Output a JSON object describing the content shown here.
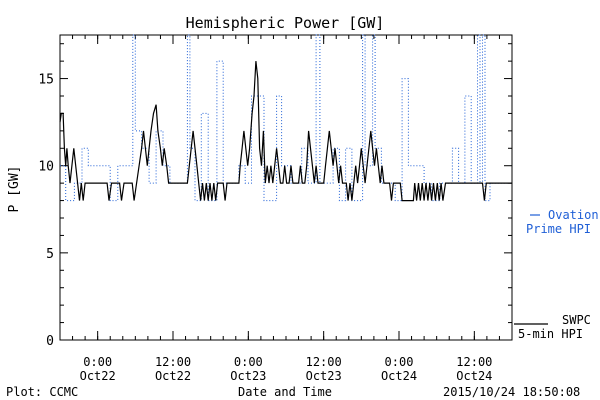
{
  "chart_data": {
    "type": "line",
    "title": "Hemispheric Power [GW]",
    "xlabel": "Date and Time",
    "ylabel": "P [GW]",
    "x_unit": "hours since 2015-10-21 18:00 UT",
    "xlim": [
      0,
      72
    ],
    "ylim": [
      0,
      17.5
    ],
    "y_ticks": [
      0,
      5,
      10,
      15
    ],
    "x_ticks": [
      {
        "x": 6,
        "time": "0:00",
        "day": "Oct22"
      },
      {
        "x": 18,
        "time": "12:00",
        "day": "Oct22"
      },
      {
        "x": 30,
        "time": "0:00",
        "day": "Oct23"
      },
      {
        "x": 42,
        "time": "12:00",
        "day": "Oct23"
      },
      {
        "x": 54,
        "time": "0:00",
        "day": "Oct24"
      },
      {
        "x": 66,
        "time": "12:00",
        "day": "Oct24"
      }
    ],
    "legend": [
      {
        "key": "ovation",
        "line1": "Ovation",
        "line2": "Prime HPI",
        "color": "#1f5fd6",
        "style": "dashed"
      },
      {
        "key": "swpc",
        "line1": "SWPC",
        "line2": "5-min HPI",
        "color": "#000000",
        "style": "solid"
      }
    ],
    "series": [
      {
        "name": "Ovation Prime HPI",
        "color": "#1f5fd6",
        "points": [
          [
            0,
            10
          ],
          [
            0.9,
            10
          ],
          [
            0.9,
            8
          ],
          [
            2.3,
            8
          ],
          [
            2.3,
            9
          ],
          [
            3.5,
            9
          ],
          [
            3.5,
            11
          ],
          [
            4.5,
            11
          ],
          [
            4.5,
            10
          ],
          [
            8,
            10
          ],
          [
            8,
            8
          ],
          [
            9.2,
            8
          ],
          [
            9.2,
            10
          ],
          [
            11.6,
            10
          ],
          [
            11.6,
            17.5
          ],
          [
            12,
            17.5
          ],
          [
            12,
            12
          ],
          [
            13,
            12
          ],
          [
            13,
            11
          ],
          [
            14.2,
            11
          ],
          [
            14.2,
            9
          ],
          [
            15.3,
            9
          ],
          [
            15.3,
            12
          ],
          [
            16.4,
            12
          ],
          [
            16.4,
            10
          ],
          [
            17.5,
            10
          ],
          [
            17.5,
            9
          ],
          [
            20.3,
            9
          ],
          [
            20.3,
            17.5
          ],
          [
            20.7,
            17.5
          ],
          [
            20.7,
            11
          ],
          [
            21.5,
            11
          ],
          [
            21.5,
            8
          ],
          [
            22.5,
            8
          ],
          [
            22.5,
            13
          ],
          [
            23.6,
            13
          ],
          [
            23.6,
            8
          ],
          [
            25,
            8
          ],
          [
            25,
            16
          ],
          [
            26,
            16
          ],
          [
            26,
            9
          ],
          [
            28.5,
            9
          ],
          [
            28.5,
            10
          ],
          [
            29.5,
            10
          ],
          [
            29.5,
            9
          ],
          [
            30.5,
            9
          ],
          [
            30.5,
            14
          ],
          [
            32.5,
            14
          ],
          [
            32.5,
            8
          ],
          [
            34.5,
            8
          ],
          [
            34.5,
            14
          ],
          [
            35.3,
            14
          ],
          [
            35.3,
            10
          ],
          [
            36.8,
            10
          ],
          [
            36.8,
            9
          ],
          [
            38.5,
            9
          ],
          [
            38.5,
            11
          ],
          [
            39.5,
            11
          ],
          [
            39.5,
            9
          ],
          [
            40.8,
            9
          ],
          [
            40.8,
            17.5
          ],
          [
            41.4,
            17.5
          ],
          [
            41.4,
            9
          ],
          [
            43.5,
            9
          ],
          [
            43.5,
            11
          ],
          [
            44.5,
            11
          ],
          [
            44.5,
            8
          ],
          [
            45.5,
            8
          ],
          [
            45.5,
            11
          ],
          [
            46.5,
            11
          ],
          [
            46.5,
            8
          ],
          [
            48.2,
            8
          ],
          [
            48.2,
            17.5
          ],
          [
            48.6,
            17.5
          ],
          [
            48.6,
            10
          ],
          [
            49.8,
            10
          ],
          [
            49.8,
            17.5
          ],
          [
            50.2,
            17.5
          ],
          [
            50.2,
            11
          ],
          [
            51.2,
            11
          ],
          [
            51.2,
            9
          ],
          [
            53.4,
            9
          ],
          [
            53.4,
            8
          ],
          [
            54.5,
            8
          ],
          [
            54.5,
            15
          ],
          [
            55.5,
            15
          ],
          [
            55.5,
            10
          ],
          [
            58,
            10
          ],
          [
            58,
            9
          ],
          [
            59.2,
            9
          ],
          [
            59.2,
            8
          ],
          [
            60.5,
            8
          ],
          [
            60.5,
            9
          ],
          [
            62.5,
            9
          ],
          [
            62.5,
            11
          ],
          [
            63.5,
            11
          ],
          [
            63.5,
            9
          ],
          [
            64.5,
            9
          ],
          [
            64.5,
            14
          ],
          [
            65.5,
            14
          ],
          [
            65.5,
            9
          ],
          [
            66.5,
            9
          ],
          [
            66.5,
            17.5
          ],
          [
            66.9,
            17.5
          ],
          [
            66.9,
            9
          ],
          [
            67.3,
            9
          ],
          [
            67.3,
            17.5
          ],
          [
            67.7,
            17.5
          ],
          [
            67.7,
            8
          ],
          [
            68.5,
            8
          ],
          [
            68.5,
            9
          ],
          [
            72,
            9
          ]
        ]
      },
      {
        "name": "SWPC 5-min HPI",
        "color": "#000000",
        "points": [
          [
            0,
            12.5
          ],
          [
            0.2,
            13
          ],
          [
            0.5,
            13
          ],
          [
            0.7,
            11
          ],
          [
            0.9,
            10
          ],
          [
            1.1,
            11
          ],
          [
            1.3,
            10
          ],
          [
            1.6,
            9
          ],
          [
            1.9,
            10
          ],
          [
            2.2,
            11
          ],
          [
            2.5,
            10
          ],
          [
            2.8,
            9
          ],
          [
            3.1,
            8
          ],
          [
            3.4,
            9
          ],
          [
            3.7,
            8
          ],
          [
            4,
            9
          ],
          [
            4.4,
            9
          ],
          [
            4.4,
            9
          ],
          [
            7.5,
            9
          ],
          [
            7.8,
            8
          ],
          [
            8.2,
            9
          ],
          [
            9.5,
            9
          ],
          [
            9.8,
            8
          ],
          [
            10.2,
            9
          ],
          [
            11.5,
            9
          ],
          [
            11.8,
            8
          ],
          [
            12.2,
            9
          ],
          [
            12.6,
            10
          ],
          [
            13,
            11
          ],
          [
            13.3,
            12
          ],
          [
            13.6,
            11
          ],
          [
            13.9,
            10
          ],
          [
            14.2,
            11
          ],
          [
            14.5,
            12
          ],
          [
            14.9,
            13
          ],
          [
            15.3,
            13.5
          ],
          [
            15.6,
            12
          ],
          [
            16,
            11
          ],
          [
            16.3,
            10
          ],
          [
            16.6,
            11
          ],
          [
            17,
            10
          ],
          [
            17.3,
            9
          ],
          [
            20.3,
            9
          ],
          [
            20.6,
            10
          ],
          [
            20.9,
            11
          ],
          [
            21.2,
            12
          ],
          [
            21.5,
            11
          ],
          [
            21.8,
            10
          ],
          [
            22.1,
            9
          ],
          [
            22.4,
            8
          ],
          [
            22.7,
            9
          ],
          [
            23,
            8
          ],
          [
            23.3,
            9
          ],
          [
            23.6,
            8
          ],
          [
            23.9,
            9
          ],
          [
            24.2,
            8
          ],
          [
            24.5,
            9
          ],
          [
            24.8,
            8
          ],
          [
            25.1,
            9
          ],
          [
            26,
            9
          ],
          [
            26.3,
            8
          ],
          [
            26.6,
            9
          ],
          [
            28.5,
            9
          ],
          [
            28.7,
            10
          ],
          [
            29,
            11
          ],
          [
            29.3,
            12
          ],
          [
            29.6,
            11
          ],
          [
            29.9,
            10
          ],
          [
            30.2,
            11
          ],
          [
            30.6,
            13
          ],
          [
            30.9,
            14
          ],
          [
            31.2,
            16
          ],
          [
            31.5,
            15
          ],
          [
            31.8,
            11
          ],
          [
            32.1,
            10
          ],
          [
            32.4,
            12
          ],
          [
            32.7,
            9
          ],
          [
            33,
            10
          ],
          [
            33.3,
            9
          ],
          [
            33.6,
            10
          ],
          [
            33.9,
            9
          ],
          [
            34.2,
            10
          ],
          [
            34.5,
            11
          ],
          [
            34.8,
            10
          ],
          [
            35.1,
            9
          ],
          [
            35.5,
            9
          ],
          [
            35.8,
            10
          ],
          [
            36.1,
            9
          ],
          [
            36.5,
            9
          ],
          [
            36.8,
            10
          ],
          [
            37.1,
            9
          ],
          [
            38,
            9
          ],
          [
            38.3,
            10
          ],
          [
            38.6,
            9
          ],
          [
            39,
            9
          ],
          [
            39.3,
            10
          ],
          [
            39.6,
            12
          ],
          [
            39.9,
            11
          ],
          [
            40.2,
            10
          ],
          [
            40.5,
            9
          ],
          [
            40.8,
            10
          ],
          [
            41.1,
            9
          ],
          [
            42,
            9
          ],
          [
            42.3,
            10
          ],
          [
            42.6,
            11
          ],
          [
            42.9,
            12
          ],
          [
            43.2,
            11
          ],
          [
            43.5,
            10
          ],
          [
            43.8,
            11
          ],
          [
            44.1,
            10
          ],
          [
            44.4,
            9
          ],
          [
            44.7,
            10
          ],
          [
            45,
            9
          ],
          [
            45.6,
            9
          ],
          [
            45.9,
            8
          ],
          [
            46.2,
            9
          ],
          [
            46.5,
            8
          ],
          [
            46.8,
            9
          ],
          [
            47.1,
            10
          ],
          [
            47.4,
            9
          ],
          [
            47.7,
            10
          ],
          [
            48,
            11
          ],
          [
            48.3,
            10
          ],
          [
            48.6,
            9
          ],
          [
            48.9,
            10
          ],
          [
            49.2,
            11
          ],
          [
            49.5,
            12
          ],
          [
            49.8,
            11
          ],
          [
            50.1,
            10
          ],
          [
            50.4,
            11
          ],
          [
            50.7,
            10
          ],
          [
            51,
            9
          ],
          [
            51.3,
            10
          ],
          [
            51.6,
            9
          ],
          [
            52.5,
            9
          ],
          [
            52.8,
            8
          ],
          [
            53.1,
            9
          ],
          [
            54.2,
            9
          ],
          [
            54.5,
            8
          ],
          [
            56.3,
            8
          ],
          [
            56.5,
            9
          ],
          [
            56.8,
            8
          ],
          [
            57.1,
            9
          ],
          [
            57.4,
            8
          ],
          [
            57.7,
            9
          ],
          [
            58,
            8
          ],
          [
            58.3,
            9
          ],
          [
            58.6,
            8
          ],
          [
            58.9,
            9
          ],
          [
            59.2,
            8
          ],
          [
            59.5,
            9
          ],
          [
            59.8,
            8
          ],
          [
            60.1,
            9
          ],
          [
            60.4,
            8
          ],
          [
            60.7,
            9
          ],
          [
            61,
            8
          ],
          [
            61.4,
            9
          ],
          [
            67.3,
            9
          ],
          [
            67.6,
            8
          ],
          [
            67.9,
            9
          ],
          [
            72,
            9
          ]
        ]
      }
    ]
  },
  "footer": {
    "plot_credit": "Plot: CCMC",
    "timestamp": "2015/10/24 18:50:08"
  }
}
